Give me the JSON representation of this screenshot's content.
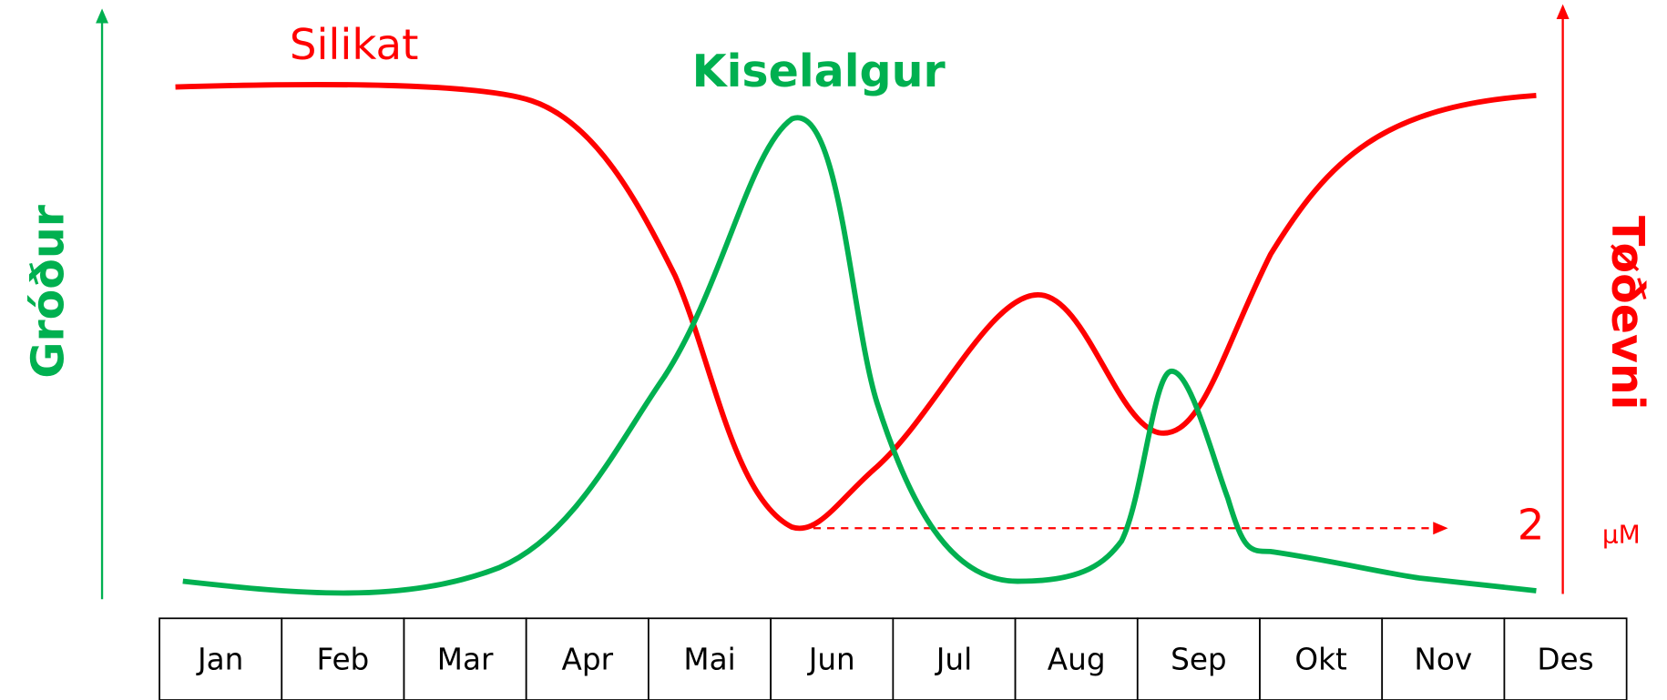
{
  "labels": {
    "silikat": "Silikat",
    "kiselalgur": "Kiselalgur",
    "left_axis": "Gróður",
    "right_axis": "Tøðevni",
    "min_value": "2",
    "unit": "μM"
  },
  "months": [
    "Jan",
    "Feb",
    "Mar",
    "Apr",
    "Mai",
    "Jun",
    "Jul",
    "Aug",
    "Sep",
    "Okt",
    "Nov",
    "Des"
  ]
}
